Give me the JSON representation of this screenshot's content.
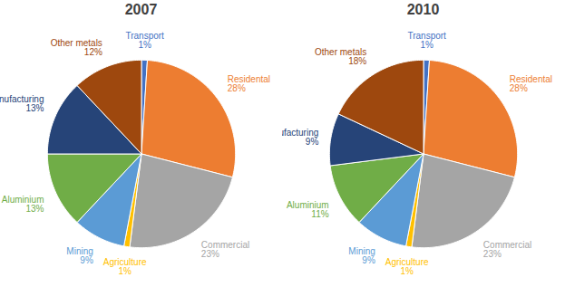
{
  "chart_data": [
    {
      "type": "pie",
      "title": "2007",
      "categories": [
        "Transport",
        "Residental",
        "Commercial",
        "Agriculture",
        "Mining",
        "Aluminium",
        "Manufacturing",
        "Other metals"
      ],
      "values": [
        1,
        28,
        23,
        1,
        9,
        13,
        13,
        12
      ],
      "value_labels": [
        "1%",
        "28%",
        "23%",
        "1%",
        "9%",
        "13%",
        "13%",
        "12%"
      ],
      "colors": [
        "#4472c4",
        "#ed7d31",
        "#a5a5a5",
        "#ffc000",
        "#5b9bd5",
        "#70ad47",
        "#264478",
        "#9e480e"
      ],
      "data_labels": true
    },
    {
      "type": "pie",
      "title": "2010",
      "categories": [
        "Transport",
        "Residental",
        "Commercial",
        "Agriculture",
        "Mining",
        "Aluminium",
        "Manufacturing",
        "Other metals"
      ],
      "values": [
        1,
        28,
        23,
        1,
        9,
        11,
        9,
        18
      ],
      "value_labels": [
        "1%",
        "28%",
        "23%",
        "1%",
        "9%",
        "11%",
        "9%",
        "18%"
      ],
      "colors": [
        "#4472c4",
        "#ed7d31",
        "#a5a5a5",
        "#ffc000",
        "#5b9bd5",
        "#70ad47",
        "#264478",
        "#9e480e"
      ],
      "data_labels": true
    }
  ]
}
